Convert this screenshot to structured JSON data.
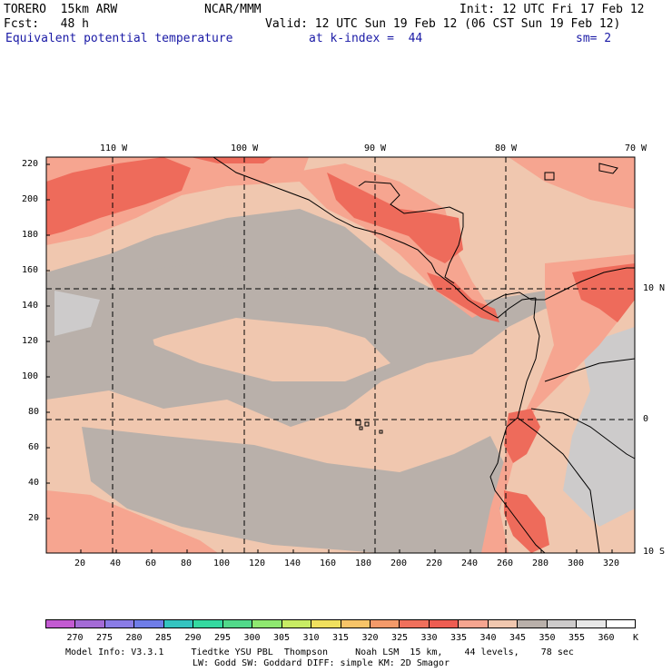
{
  "header": {
    "model": "TORERO  15km ARW",
    "org": "NCAR/MMM",
    "init": "Init: 12 UTC Fri 17 Feb 12",
    "fcst": "Fcst:   48 h",
    "valid": "Valid: 12 UTC Sun 19 Feb 12 (06 CST Sun 19 Feb 12)",
    "field": "Equivalent potential temperature",
    "level": "at k-index =  44",
    "smooth": "sm= 2"
  },
  "map": {
    "top_lon_labels": [
      "110 W",
      "100 W",
      "90 W",
      "80 W",
      "70 W"
    ],
    "right_lat_labels": [
      "10 N",
      "0",
      "10 S"
    ],
    "y_ticks": [
      "220",
      "200",
      "180",
      "160",
      "140",
      "120",
      "100",
      "80",
      "60",
      "40",
      "20"
    ],
    "x_ticks": [
      "20",
      "40",
      "60",
      "80",
      "100",
      "120",
      "140",
      "160",
      "180",
      "200",
      "220",
      "240",
      "260",
      "280",
      "300",
      "320"
    ],
    "colors": {
      "grey": "#b9b0aa",
      "light_grey": "#cdcbcb",
      "tan": "#f0c7af",
      "salmon": "#f6a590",
      "red": "#ee6b5b",
      "orange_red": "#f4826a"
    }
  },
  "colorbar": {
    "labels": [
      "270",
      "275",
      "280",
      "285",
      "290",
      "295",
      "300",
      "305",
      "310",
      "315",
      "320",
      "325",
      "330",
      "335",
      "340",
      "345",
      "350",
      "355",
      "360"
    ],
    "unit": "K",
    "colors": [
      "#c35ad2",
      "#a46bd6",
      "#8a7ce6",
      "#6f7de8",
      "#35c4c0",
      "#35d9a0",
      "#52d98a",
      "#8fe870",
      "#c8ec64",
      "#f0e05e",
      "#f7c468",
      "#f49a6a",
      "#f0705c",
      "#ee5d52",
      "#f6a590",
      "#f0c7af",
      "#b9b0aa",
      "#cdcbcb",
      "#e8e8e8",
      "#ffffff"
    ]
  },
  "footer": {
    "line1": "Model Info: V3.3.1     Tiedtke YSU PBL  Thompson     Noah LSM  15 km,    44 levels,    78 sec",
    "line2": "LW: Godd SW: Goddard DIFF: simple KM: 2D Smagor"
  }
}
